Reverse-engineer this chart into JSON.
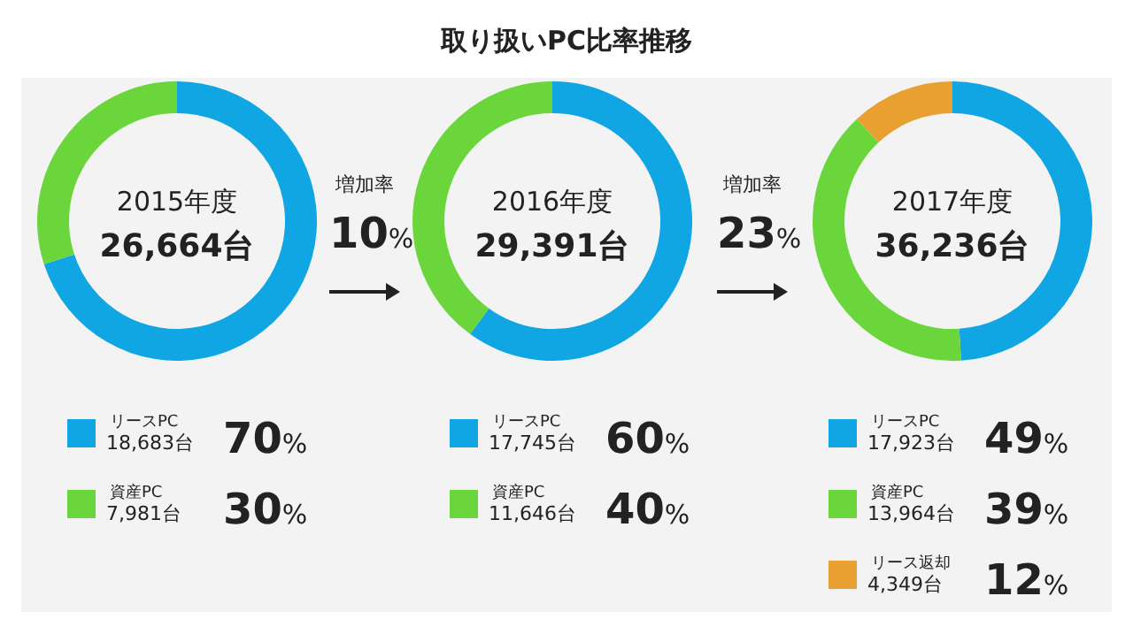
{
  "chart_data": [
    {
      "type": "other",
      "title": "取り扱いPC比率推移"
    },
    {
      "type": "donut",
      "legend": "bottom",
      "categories": [
        "リースPC",
        "資産PC"
      ],
      "values": [
        70,
        30
      ],
      "colors": [
        "#10a5e3",
        "#6ad63c"
      ],
      "value_labels": [
        "70%",
        "30%"
      ],
      "annotations": [
        "2015年度",
        "26,664台",
        "18,683台",
        "7,981台"
      ]
    },
    {
      "type": "donut",
      "legend": "bottom",
      "categories": [
        "リースPC",
        "資産PC"
      ],
      "values": [
        60,
        40
      ],
      "colors": [
        "#10a5e3",
        "#6ad63c"
      ],
      "value_labels": [
        "60%",
        "40%"
      ],
      "annotations": [
        "2016年度",
        "29,391台",
        "17,745台",
        "11,646台",
        "増加率",
        "10%"
      ]
    },
    {
      "type": "donut",
      "legend": "bottom",
      "categories": [
        "リースPC",
        "資産PC",
        "リース返却"
      ],
      "values": [
        49,
        39,
        12
      ],
      "colors": [
        "#10a5e3",
        "#6ad63c",
        "#e8a030"
      ],
      "value_labels": [
        "49%",
        "39%",
        "12%"
      ],
      "annotations": [
        "2017年度",
        "36,236台",
        "17,923台",
        "13,964台",
        "4,349台",
        "増加率",
        "23%"
      ]
    }
  ]
}
